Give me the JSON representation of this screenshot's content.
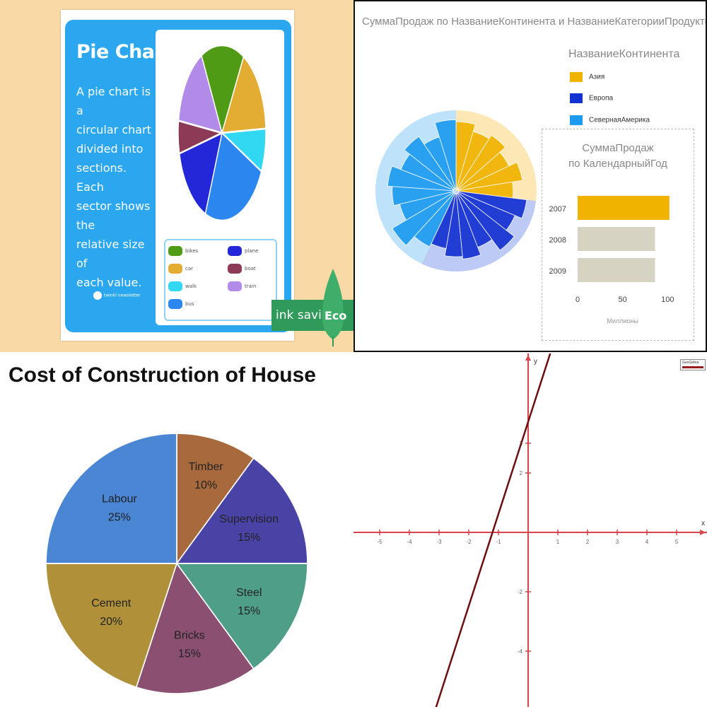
{
  "chart_data": [
    {
      "type": "pie",
      "title": "Pie Chart",
      "description": "A pie chart is a circular chart divided into sections. Each sector shows the relative size of each value.",
      "description_lines": [
        "A pie chart is a",
        "circular chart",
        "divided into",
        "sections. Each",
        "sector shows the",
        "relative size of",
        "each value."
      ],
      "slices": [
        {
          "label": "bikes",
          "value": 16,
          "color": "#4f9b16"
        },
        {
          "label": "car",
          "value": 16,
          "color": "#e3ad34"
        },
        {
          "label": "walk",
          "value": 8,
          "color": "#32d7f1"
        },
        {
          "label": "bus",
          "value": 24,
          "color": "#2b86f0"
        },
        {
          "label": "plane",
          "value": 15,
          "color": "#2427d8"
        },
        {
          "label": "boat",
          "value": 6,
          "color": "#8c3a55"
        },
        {
          "label": "train",
          "value": 15,
          "color": "#b28ae8"
        }
      ],
      "legend": [
        {
          "label": "bikes",
          "color": "#4f9b16"
        },
        {
          "label": "plane",
          "color": "#2427d8"
        },
        {
          "label": "car",
          "color": "#e3ad34"
        },
        {
          "label": "boat",
          "color": "#8c3a55"
        },
        {
          "label": "walk",
          "color": "#32d7f1"
        },
        {
          "label": "train",
          "color": "#b28ae8"
        },
        {
          "label": "bus",
          "color": "#2b86f0"
        }
      ],
      "badge_text": "ink saving",
      "badge_word": "Eco",
      "logo_text": "twinkl newsletter"
    },
    {
      "type": "sunburst",
      "title": "СуммаПродаж по НазваниеКонтинента и НазваниеКатегорииПродуктов",
      "legend_title": "НазваниеКонтинента",
      "legend": [
        {
          "label": "Азия",
          "color": "#f0b400"
        },
        {
          "label": "Европа",
          "color": "#1432d2"
        },
        {
          "label": "СевернаяАмерика",
          "color": "#1e9bf0"
        }
      ],
      "continents": [
        {
          "name": "Азия",
          "share": 0.27,
          "color": "#f0b400",
          "light": "#fde7b5",
          "categories": [
            0.63,
            0.52,
            0.58,
            0.47,
            0.6,
            0.45
          ]
        },
        {
          "name": "Европа",
          "share": 0.3,
          "color": "#1432d2",
          "light": "#bccaf5",
          "categories": [
            0.66,
            0.55,
            0.7,
            0.5,
            0.62,
            0.58,
            0.47
          ]
        },
        {
          "name": "СевернаяАмерика",
          "share": 0.43,
          "color": "#1e9bf0",
          "light": "#bfe2fb",
          "categories": [
            0.52,
            0.7,
            0.46,
            0.55,
            0.62,
            0.48,
            0.58,
            0.44,
            0.66
          ]
        }
      ],
      "inset": {
        "type": "bar",
        "orientation": "horizontal",
        "title": [
          "СуммаПродаж",
          "по КалендарныйГод"
        ],
        "categories": [
          "2007",
          "2008",
          "2009"
        ],
        "values": [
          102,
          86,
          86
        ],
        "colors": [
          "#f0b400",
          "#d6d3c2",
          "#d6d3c2"
        ],
        "xlim": [
          0,
          110
        ],
        "xticks": [
          0,
          50,
          100
        ],
        "xlabel": "Миллионы"
      }
    },
    {
      "type": "pie",
      "title": "Cost of Construction of House",
      "slices": [
        {
          "label": "Timber",
          "value": 10,
          "color": "#a86a3c"
        },
        {
          "label": "Supervision",
          "value": 15,
          "color": "#4a43a6"
        },
        {
          "label": "Steel",
          "value": 15,
          "color": "#4f9e88"
        },
        {
          "label": "Bricks",
          "value": 15,
          "color": "#8a4f71"
        },
        {
          "label": "Cement",
          "value": 20,
          "color": "#b0913a"
        },
        {
          "label": "Labour",
          "value": 25,
          "color": "#4a86d4"
        }
      ]
    },
    {
      "type": "line",
      "xlim": [
        -5.6,
        5.9
      ],
      "ylim": [
        -5.9,
        5.9
      ],
      "xticks": [
        -5,
        -4,
        -3,
        -2,
        -1,
        1,
        2,
        3,
        4,
        5
      ],
      "yticks": [
        3,
        2,
        -2,
        -4
      ],
      "x_axis_label": "x",
      "y_axis_label": "y",
      "series": [
        {
          "x": [
            -3.2,
            0.8
          ],
          "y": [
            -6.2,
            6.2
          ],
          "color": "#6b0f0f"
        }
      ],
      "badge_text": "GeoGebra"
    }
  ]
}
